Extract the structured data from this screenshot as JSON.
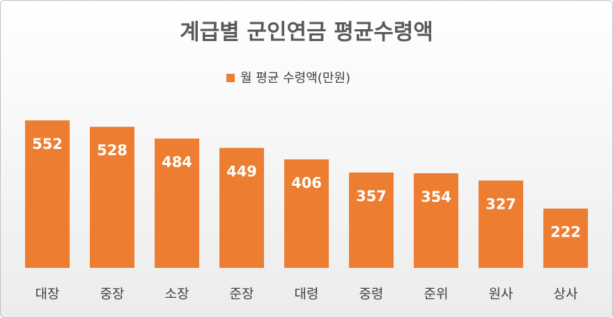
{
  "chart_data": {
    "type": "bar",
    "title": "계급별 군인연금 평균수령액",
    "series": [
      {
        "name": "월 평균 수령액(만원)",
        "color": "#ed7d31",
        "values": [
          552,
          528,
          484,
          449,
          406,
          357,
          354,
          327,
          222
        ]
      }
    ],
    "categories": [
      "대장",
      "중장",
      "소장",
      "준장",
      "대령",
      "중령",
      "준위",
      "원사",
      "상사"
    ],
    "data_labels": true,
    "legend": "top"
  }
}
